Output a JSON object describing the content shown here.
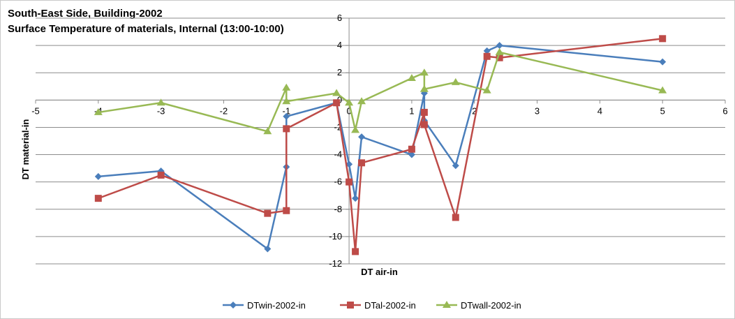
{
  "chart_data": {
    "type": "scatter",
    "title": "South-East Side, Building-2002",
    "subtitle": "Surface Temperature of materials, Internal (13:00-10:00)",
    "xlabel": "DT air-in",
    "ylabel": "DT material-in",
    "xlim": [
      -5,
      6
    ],
    "ylim": [
      -12,
      6
    ],
    "x_ticks": [
      -5,
      -4,
      -3,
      -2,
      -1,
      0,
      1,
      2,
      3,
      4,
      5,
      6
    ],
    "y_ticks": [
      -12,
      -10,
      -8,
      -6,
      -4,
      -2,
      0,
      2,
      4,
      6
    ],
    "grid": "horizontal",
    "legend_position": "bottom",
    "series": [
      {
        "name": "DTwin-2002-in",
        "color": "#4a7ebb",
        "marker": "diamond",
        "points": [
          [
            -4,
            -5.6
          ],
          [
            -3,
            -5.2
          ],
          [
            -1.3,
            -10.9
          ],
          [
            -1,
            -4.9
          ],
          [
            -1,
            -1.2
          ],
          [
            -0.2,
            -0.2
          ],
          [
            0,
            -4.7
          ],
          [
            0.1,
            -7.2
          ],
          [
            0.2,
            -2.7
          ],
          [
            1,
            -4
          ],
          [
            1.2,
            0.5
          ],
          [
            1.2,
            -1.5
          ],
          [
            1.7,
            -4.8
          ],
          [
            2.2,
            3.6
          ],
          [
            2.4,
            4
          ],
          [
            5,
            2.8
          ]
        ]
      },
      {
        "name": "DTal-2002-in",
        "color": "#be4b48",
        "marker": "square",
        "points": [
          [
            -4,
            -7.2
          ],
          [
            -3,
            -5.5
          ],
          [
            -1.3,
            -8.3
          ],
          [
            -1,
            -8.1
          ],
          [
            -1,
            -2.1
          ],
          [
            -0.2,
            -0.2
          ],
          [
            0,
            -6
          ],
          [
            0.1,
            -11.1
          ],
          [
            0.2,
            -4.6
          ],
          [
            1,
            -3.6
          ],
          [
            1.2,
            -0.9
          ],
          [
            1.2,
            -1.8
          ],
          [
            1.7,
            -8.6
          ],
          [
            2.2,
            3.2
          ],
          [
            2.4,
            3.1
          ],
          [
            5,
            4.5
          ]
        ]
      },
      {
        "name": "DTwall-2002-in",
        "color": "#98b954",
        "marker": "triangle",
        "points": [
          [
            -4,
            -0.9
          ],
          [
            -3,
            -0.2
          ],
          [
            -1.3,
            -2.3
          ],
          [
            -1,
            0.9
          ],
          [
            -1,
            -0.1
          ],
          [
            -0.2,
            0.5
          ],
          [
            0,
            -0.2
          ],
          [
            0.1,
            -2.2
          ],
          [
            0.2,
            -0.1
          ],
          [
            1,
            1.6
          ],
          [
            1.2,
            2
          ],
          [
            1.2,
            0.8
          ],
          [
            1.7,
            1.3
          ],
          [
            2.2,
            0.7
          ],
          [
            2.4,
            3.5
          ],
          [
            5,
            0.7
          ]
        ]
      }
    ]
  }
}
